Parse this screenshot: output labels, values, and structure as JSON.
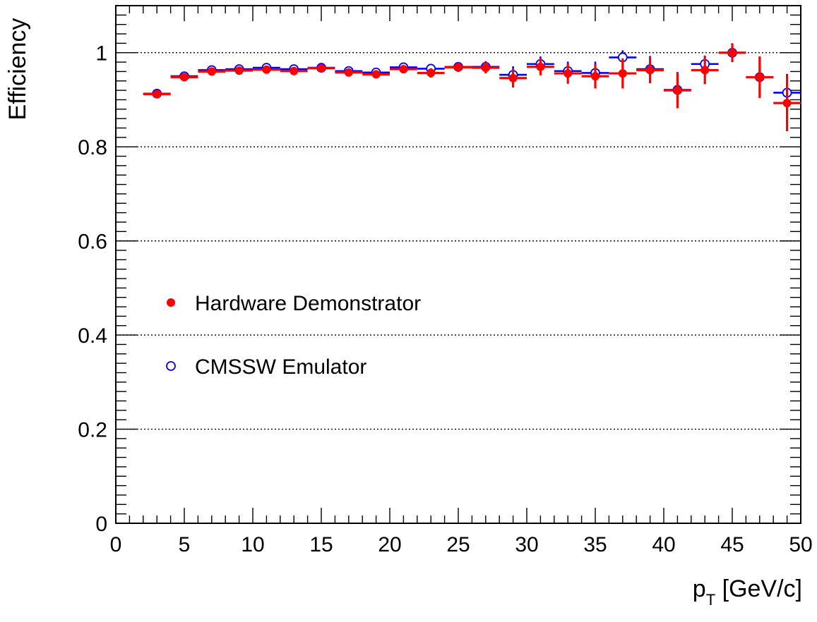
{
  "chart_data": {
    "type": "scatter",
    "title": "",
    "xlabel": {
      "main": "p",
      "sub": "T",
      "unit": " [GeV/c]"
    },
    "ylabel": "Efficiency",
    "xlim": [
      0,
      50
    ],
    "ylim": [
      0,
      1.1
    ],
    "xticks": [
      0,
      5,
      10,
      15,
      20,
      25,
      30,
      35,
      40,
      45,
      50
    ],
    "xtick_labels": [
      "0",
      "5",
      "10",
      "15",
      "20",
      "25",
      "30",
      "35",
      "40",
      "45",
      "50"
    ],
    "yticks": [
      0,
      0.2,
      0.4,
      0.6,
      0.8,
      1
    ],
    "ytick_labels": [
      "0",
      "0.2",
      "0.4",
      "0.6",
      "0.8",
      "1"
    ],
    "grid_y": [
      0.2,
      0.4,
      0.6,
      0.8,
      1.0
    ],
    "legend_position": "middle-left",
    "colors": {
      "hardware": "#ff0000",
      "emulator": "#0000ff"
    },
    "series": [
      {
        "name": "Hardware Demonstrator",
        "marker": "filled-circle",
        "color": "#ff0000",
        "bins": [
          {
            "x": 3,
            "xerr": 1,
            "y": 0.912,
            "yerr": 0.003
          },
          {
            "x": 5,
            "xerr": 1,
            "y": 0.948,
            "yerr": 0.003
          },
          {
            "x": 7,
            "xerr": 1,
            "y": 0.96,
            "yerr": 0.004
          },
          {
            "x": 9,
            "xerr": 1,
            "y": 0.962,
            "yerr": 0.004
          },
          {
            "x": 11,
            "xerr": 1,
            "y": 0.964,
            "yerr": 0.004
          },
          {
            "x": 13,
            "xerr": 1,
            "y": 0.961,
            "yerr": 0.005
          },
          {
            "x": 15,
            "xerr": 1,
            "y": 0.967,
            "yerr": 0.005
          },
          {
            "x": 17,
            "xerr": 1,
            "y": 0.958,
            "yerr": 0.006
          },
          {
            "x": 19,
            "xerr": 1,
            "y": 0.954,
            "yerr": 0.007
          },
          {
            "x": 21,
            "xerr": 1,
            "y": 0.965,
            "yerr": 0.008
          },
          {
            "x": 23,
            "xerr": 1,
            "y": 0.957,
            "yerr": 0.01
          },
          {
            "x": 25,
            "xerr": 1,
            "y": 0.969,
            "yerr": 0.01
          },
          {
            "x": 27,
            "xerr": 1,
            "y": 0.968,
            "yerr": 0.012
          },
          {
            "x": 29,
            "xerr": 1,
            "y": 0.946,
            "yerr": 0.02
          },
          {
            "x": 31,
            "xerr": 1,
            "y": 0.97,
            "yerr": 0.018
          },
          {
            "x": 33,
            "xerr": 1,
            "y": 0.956,
            "yerr": 0.022
          },
          {
            "x": 35,
            "xerr": 1,
            "y": 0.95,
            "yerr": 0.026
          },
          {
            "x": 37,
            "xerr": 1,
            "y": 0.956,
            "yerr": 0.032
          },
          {
            "x": 39,
            "xerr": 1,
            "y": 0.963,
            "yerr": 0.028
          },
          {
            "x": 41,
            "xerr": 1,
            "y": 0.92,
            "yerr": 0.038
          },
          {
            "x": 43,
            "xerr": 1,
            "y": 0.963,
            "yerr": 0.03
          },
          {
            "x": 45,
            "xerr": 1,
            "y": 1.0,
            "yerr": 0.02
          },
          {
            "x": 47,
            "xerr": 1,
            "y": 0.948,
            "yerr": 0.044
          },
          {
            "x": 49,
            "xerr": 1,
            "y": 0.893,
            "yerr": 0.06
          }
        ]
      },
      {
        "name": "CMSSW Emulator",
        "marker": "open-circle",
        "color": "#0000ff",
        "bins": [
          {
            "x": 3,
            "xerr": 1,
            "y": 0.913,
            "yerr": 0.003
          },
          {
            "x": 5,
            "xerr": 1,
            "y": 0.95,
            "yerr": 0.003
          },
          {
            "x": 7,
            "xerr": 1,
            "y": 0.963,
            "yerr": 0.004
          },
          {
            "x": 9,
            "xerr": 1,
            "y": 0.965,
            "yerr": 0.004
          },
          {
            "x": 11,
            "xerr": 1,
            "y": 0.968,
            "yerr": 0.004
          },
          {
            "x": 13,
            "xerr": 1,
            "y": 0.965,
            "yerr": 0.005
          },
          {
            "x": 15,
            "xerr": 1,
            "y": 0.968,
            "yerr": 0.005
          },
          {
            "x": 17,
            "xerr": 1,
            "y": 0.961,
            "yerr": 0.006
          },
          {
            "x": 19,
            "xerr": 1,
            "y": 0.958,
            "yerr": 0.007
          },
          {
            "x": 21,
            "xerr": 1,
            "y": 0.969,
            "yerr": 0.008
          },
          {
            "x": 23,
            "xerr": 1,
            "y": 0.966,
            "yerr": 0.01
          },
          {
            "x": 25,
            "xerr": 1,
            "y": 0.97,
            "yerr": 0.01
          },
          {
            "x": 27,
            "xerr": 1,
            "y": 0.97,
            "yerr": 0.012
          },
          {
            "x": 29,
            "xerr": 1,
            "y": 0.953,
            "yerr": 0.018
          },
          {
            "x": 31,
            "xerr": 1,
            "y": 0.976,
            "yerr": 0.016
          },
          {
            "x": 33,
            "xerr": 1,
            "y": 0.961,
            "yerr": 0.02
          },
          {
            "x": 35,
            "xerr": 1,
            "y": 0.957,
            "yerr": 0.024
          },
          {
            "x": 37,
            "xerr": 1,
            "y": 0.99,
            "yerr": 0.015
          },
          {
            "x": 39,
            "xerr": 1,
            "y": 0.965,
            "yerr": 0.028
          },
          {
            "x": 41,
            "xerr": 1,
            "y": 0.921,
            "yerr": 0.038
          },
          {
            "x": 43,
            "xerr": 1,
            "y": 0.976,
            "yerr": 0.018
          },
          {
            "x": 45,
            "xerr": 1,
            "y": 1.0,
            "yerr": 0.02
          },
          {
            "x": 47,
            "xerr": 1,
            "y": 0.948,
            "yerr": 0.044
          },
          {
            "x": 49,
            "xerr": 1,
            "y": 0.915,
            "yerr": 0.04
          }
        ]
      }
    ]
  }
}
